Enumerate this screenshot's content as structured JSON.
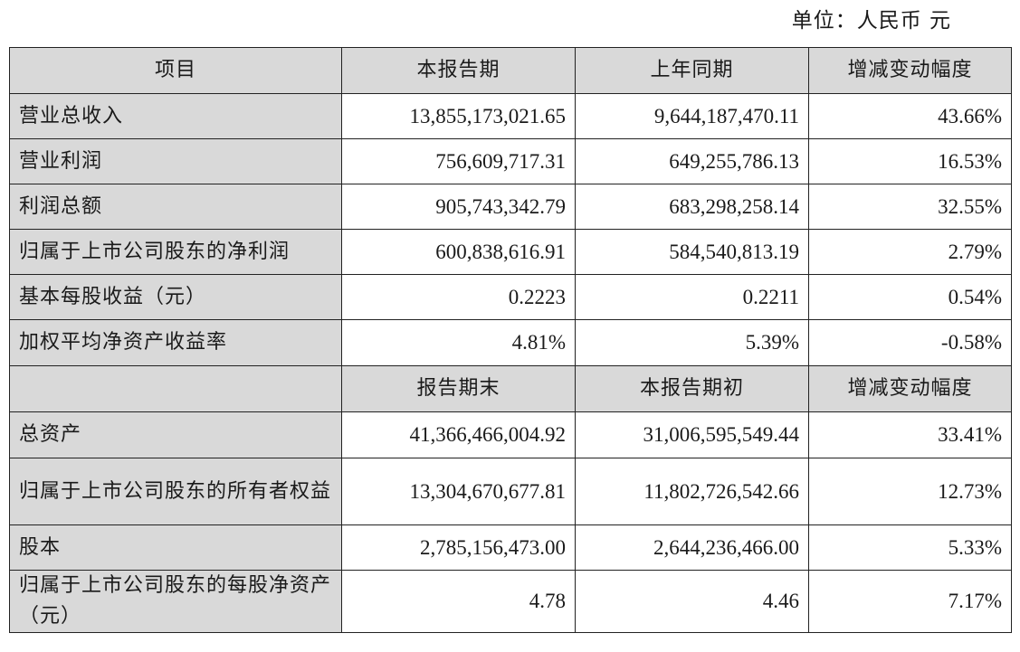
{
  "unit_label": "单位：人民币 元",
  "income_header": {
    "item": "项目",
    "current": "本报告期",
    "previous": "上年同期",
    "change": "增减变动幅度"
  },
  "income_rows": [
    {
      "label": "营业总收入",
      "current": "13,855,173,021.65",
      "previous": "9,644,187,470.11",
      "change": "43.66%"
    },
    {
      "label": "营业利润",
      "current": "756,609,717.31",
      "previous": "649,255,786.13",
      "change": "16.53%"
    },
    {
      "label": "利润总额",
      "current": "905,743,342.79",
      "previous": "683,298,258.14",
      "change": "32.55%"
    },
    {
      "label": "归属于上市公司股东的净利润",
      "current": "600,838,616.91",
      "previous": "584,540,813.19",
      "change": "2.79%"
    },
    {
      "label": "基本每股收益（元）",
      "current": "0.2223",
      "previous": "0.2211",
      "change": "0.54%"
    },
    {
      "label": "加权平均净资产收益率",
      "current": "4.81%",
      "previous": "5.39%",
      "change": "-0.58%"
    }
  ],
  "balance_header": {
    "item": "",
    "current": "报告期末",
    "previous": "本报告期初",
    "change": "增减变动幅度"
  },
  "balance_rows": [
    {
      "label": "总资产",
      "current": "41,366,466,004.92",
      "previous": "31,006,595,549.44",
      "change": "33.41%"
    },
    {
      "label": "归属于上市公司股东的所有者权益",
      "current": "13,304,670,677.81",
      "previous": "11,802,726,542.66",
      "change": "12.73%"
    },
    {
      "label": "股本",
      "current": "2,785,156,473.00",
      "previous": "2,644,236,466.00",
      "change": "5.33%"
    },
    {
      "label": "归属于上市公司股东的每股净资产（元）",
      "current": "4.78",
      "previous": "4.46",
      "change": "7.17%"
    }
  ]
}
